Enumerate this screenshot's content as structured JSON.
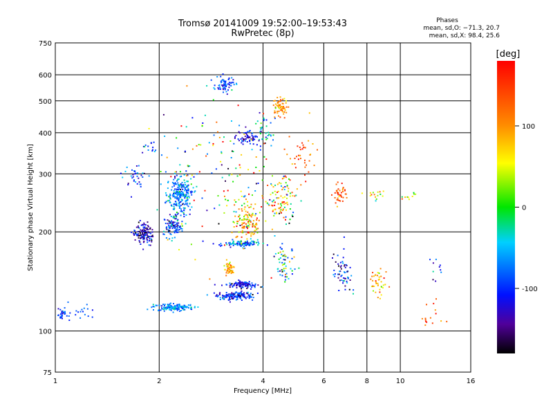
{
  "chart_data": {
    "type": "scatter",
    "title": "Tromsø 20141009 19:52:00–19:53:43",
    "subtitle": "RwPretec (8p)",
    "xlabel": "Frequency [MHz]",
    "ylabel": "Stationary phase Virtual Height [km]",
    "x_scale": "log",
    "y_scale": "log",
    "xlim": [
      1,
      16
    ],
    "ylim": [
      75,
      750
    ],
    "x_ticks": [
      1,
      2,
      4,
      6,
      8,
      10,
      16
    ],
    "x_tick_labels": [
      "1",
      "2",
      "4",
      "6",
      "8",
      "10",
      "16"
    ],
    "y_ticks": [
      75,
      100,
      200,
      300,
      400,
      500,
      600,
      750
    ],
    "y_tick_labels": [
      "75",
      "100",
      "200",
      "300",
      "400",
      "500",
      "600",
      "750"
    ],
    "grid": true,
    "colorbar": {
      "label": "[deg]",
      "range": [
        -180,
        180
      ],
      "ticks": [
        100,
        0,
        -100
      ],
      "tick_labels": [
        "100",
        "0",
        "-100"
      ]
    },
    "stats": {
      "heading": "Phases",
      "line1": "mean, sd,O: −71.3, 20.7",
      "line2": "mean, sd,X:  98.4, 25.6"
    },
    "clusters": [
      {
        "x": 1.05,
        "y": 112,
        "sx": 0.025,
        "sy": 0.02,
        "n": 30,
        "phase": -90,
        "sp": 20
      },
      {
        "x": 1.2,
        "y": 114,
        "sx": 0.04,
        "sy": 0.03,
        "n": 15,
        "phase": -80,
        "sp": 20
      },
      {
        "x": 1.8,
        "y": 198,
        "sx": 0.03,
        "sy": 0.035,
        "n": 130,
        "phase": -130,
        "sp": 30
      },
      {
        "x": 2.2,
        "y": 208,
        "sx": 0.03,
        "sy": 0.04,
        "n": 100,
        "phase": -100,
        "sp": 40
      },
      {
        "x": 2.3,
        "y": 260,
        "sx": 0.045,
        "sy": 0.07,
        "n": 250,
        "phase": -70,
        "sp": 30
      },
      {
        "x": 1.7,
        "y": 300,
        "sx": 0.04,
        "sy": 0.04,
        "n": 35,
        "phase": -90,
        "sp": 30
      },
      {
        "x": 1.85,
        "y": 360,
        "sx": 0.04,
        "sy": 0.03,
        "n": 15,
        "phase": -110,
        "sp": 30
      },
      {
        "x": 2.2,
        "y": 118,
        "sx": 0.07,
        "sy": 0.012,
        "n": 150,
        "phase": -70,
        "sp": 25
      },
      {
        "x": 3.3,
        "y": 128,
        "sx": 0.06,
        "sy": 0.014,
        "n": 160,
        "phase": -105,
        "sp": 30
      },
      {
        "x": 3.5,
        "y": 138,
        "sx": 0.05,
        "sy": 0.012,
        "n": 100,
        "phase": -110,
        "sp": 25
      },
      {
        "x": 3.5,
        "y": 184,
        "sx": 0.06,
        "sy": 0.012,
        "n": 100,
        "phase": -80,
        "sp": 40
      },
      {
        "x": 3.1,
        "y": 560,
        "sx": 0.03,
        "sy": 0.025,
        "n": 70,
        "phase": -90,
        "sp": 30
      },
      {
        "x": 3.6,
        "y": 385,
        "sx": 0.035,
        "sy": 0.025,
        "n": 60,
        "phase": -120,
        "sp": 25
      },
      {
        "x": 4.0,
        "y": 400,
        "sx": 0.04,
        "sy": 0.05,
        "n": 40,
        "phase": -80,
        "sp": 50
      },
      {
        "x": 4.5,
        "y": 480,
        "sx": 0.025,
        "sy": 0.03,
        "n": 60,
        "phase": 100,
        "sp": 25
      },
      {
        "x": 3.2,
        "y": 155,
        "sx": 0.02,
        "sy": 0.03,
        "n": 50,
        "phase": 90,
        "sp": 30
      },
      {
        "x": 3.6,
        "y": 215,
        "sx": 0.04,
        "sy": 0.07,
        "n": 120,
        "phase": 90,
        "sp": 50
      },
      {
        "x": 4.5,
        "y": 250,
        "sx": 0.05,
        "sy": 0.09,
        "n": 100,
        "phase": 60,
        "sp": 80
      },
      {
        "x": 4.6,
        "y": 160,
        "sx": 0.04,
        "sy": 0.05,
        "n": 60,
        "phase": -50,
        "sp": 80
      },
      {
        "x": 5.2,
        "y": 330,
        "sx": 0.04,
        "sy": 0.1,
        "n": 40,
        "phase": 120,
        "sp": 40
      },
      {
        "x": 6.7,
        "y": 260,
        "sx": 0.025,
        "sy": 0.04,
        "n": 40,
        "phase": 130,
        "sp": 30
      },
      {
        "x": 6.8,
        "y": 150,
        "sx": 0.03,
        "sy": 0.07,
        "n": 60,
        "phase": -110,
        "sp": 40
      },
      {
        "x": 8.7,
        "y": 140,
        "sx": 0.03,
        "sy": 0.05,
        "n": 40,
        "phase": 90,
        "sp": 40
      },
      {
        "x": 8.5,
        "y": 260,
        "sx": 0.03,
        "sy": 0.03,
        "n": 15,
        "phase": 60,
        "sp": 50
      },
      {
        "x": 10.5,
        "y": 260,
        "sx": 0.03,
        "sy": 0.03,
        "n": 10,
        "phase": 60,
        "sp": 50
      },
      {
        "x": 12.5,
        "y": 110,
        "sx": 0.04,
        "sy": 0.05,
        "n": 15,
        "phase": 140,
        "sp": 40
      },
      {
        "x": 12.8,
        "y": 155,
        "sx": 0.03,
        "sy": 0.05,
        "n": 10,
        "phase": -90,
        "sp": 40
      },
      {
        "x": 3.0,
        "y": 300,
        "sx": 0.2,
        "sy": 0.25,
        "n": 150,
        "phase": 0,
        "sp": 120
      }
    ]
  }
}
